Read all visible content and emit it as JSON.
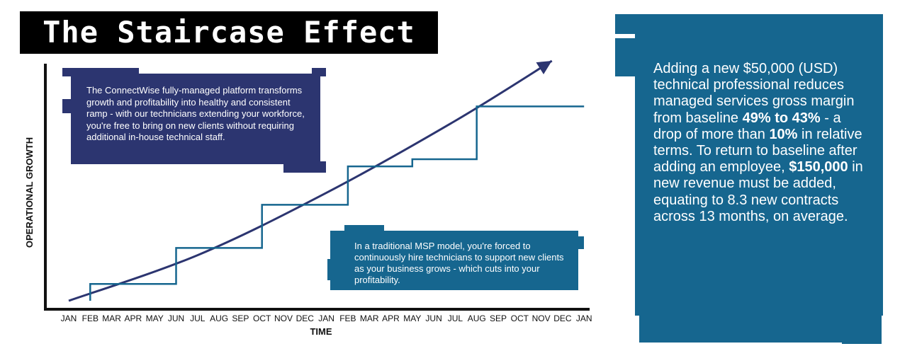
{
  "title": "The Staircase Effect",
  "colors": {
    "title_bg": "#000000",
    "navy_note": "#2c3570",
    "teal": "#16668f",
    "curve": "#2c3570",
    "staircase": "#16668f",
    "axis": "#111111"
  },
  "notes": {
    "managed": "The ConnectWise fully-managed platform transforms growth and profitability into healthy and consistent ramp - with our technicians extending your workforce, you're free to bring on new clients without requiring additional in-house technical staff.",
    "traditional": "In a traditional MSP model, you're forced to continuously hire technicians to support new clients as your business grows - which cuts into your profitability."
  },
  "sidebar": {
    "text_1": "Adding a new $50,000 (USD) technical professional reduces managed services gross margin from baseline ",
    "bold_1": "49% to 43%",
    "text_2": " - a drop of more than ",
    "bold_2": "10%",
    "text_3": " in relative terms. To return to baseline after adding an employee, ",
    "bold_3": "$150,000",
    "text_4": " in new revenue must be added, equating to 8.3 new contracts across 13 months, on average."
  },
  "chart_data": {
    "type": "line",
    "xlabel": "TIME",
    "ylabel": "OPERATIONAL GROWTH",
    "categories": [
      "JAN",
      "FEB",
      "MAR",
      "APR",
      "MAY",
      "JUN",
      "JUL",
      "AUG",
      "SEP",
      "OCT",
      "NOV",
      "DEC",
      "JAN",
      "FEB",
      "MAR",
      "APR",
      "MAY",
      "JUN",
      "JUL",
      "AUG",
      "SEP",
      "OCT",
      "NOV",
      "DEC",
      "JAN"
    ],
    "grid": false,
    "series": [
      {
        "kind": "smooth-curve-with-arrow",
        "x": [
          0,
          6,
          12,
          18,
          22.5
        ],
        "y": [
          0.0,
          0.19,
          0.45,
          0.75,
          1.0
        ]
      },
      {
        "kind": "staircase",
        "steps": [
          {
            "x": 1,
            "y": 0.07
          },
          {
            "x": 5,
            "y": 0.22
          },
          {
            "x": 9,
            "y": 0.4
          },
          {
            "x": 13,
            "y": 0.56
          },
          {
            "x": 16,
            "y": 0.59
          },
          {
            "x": 19,
            "y": 0.81
          }
        ],
        "x_end": 24
      }
    ]
  }
}
